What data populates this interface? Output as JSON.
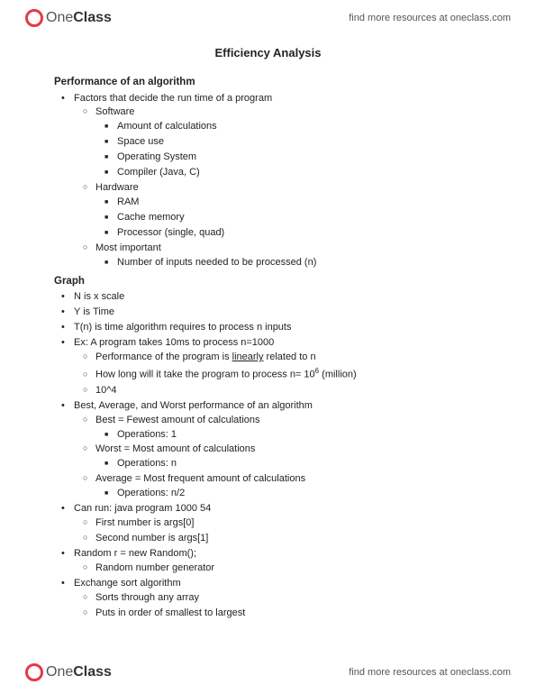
{
  "header": {
    "logo_text_one": "One",
    "logo_text_class": "Class",
    "link_text": "find more resources at oneclass.com"
  },
  "footer": {
    "logo_text_one": "One",
    "logo_text_class": "Class",
    "link_text": "find more resources at oneclass.com"
  },
  "doc": {
    "title": "Efficiency Analysis",
    "section1_heading": "Performance of an algorithm",
    "factors": "Factors that decide the run time of a program",
    "software": "Software",
    "sw_calc": "Amount of calculations",
    "sw_space": "Space use",
    "sw_os": "Operating System",
    "sw_compiler": "Compiler (Java, C)",
    "hardware": "Hardware",
    "hw_ram": "RAM",
    "hw_cache": "Cache memory",
    "hw_proc": "Processor (single, quad)",
    "most_imp": "Most important",
    "most_imp_item": "Number of inputs needed to be processed (n)",
    "section2_heading": "Graph",
    "g_nx": "N is x scale",
    "g_y": "Y is Time",
    "g_tn": "T(n) is time algorithm requires to process n inputs",
    "g_ex": "Ex: A program takes 10ms to process n=1000",
    "g_perf_pre": "Performance of the program is ",
    "g_perf_u": "linearly",
    "g_perf_post": " related to n",
    "g_how_pre": "How long will it take the program to process n= 10",
    "g_how_sup": "6",
    "g_how_post": "  (million)",
    "g_104": "10^4",
    "g_baw": "Best, Average, and Worst performance of an algorithm",
    "g_best": "Best = Fewest amount of calculations",
    "g_best_ops": "Operations: 1",
    "g_worst": "Worst = Most amount of calculations",
    "g_worst_ops": "Operations: n",
    "g_avg": "Average = Most frequent amount of calculations",
    "g_avg_ops": "Operations: n/2",
    "g_run": "Can run: java program 1000 54",
    "g_run_first": "First number is args[0]",
    "g_run_second": "Second number is args[1]",
    "g_random": "Random r = new Random();",
    "g_random_gen": "Random number generator",
    "g_exch": "Exchange sort algorithm",
    "g_exch_sort": "Sorts through any array",
    "g_exch_order": "Puts in order of smallest to largest"
  }
}
